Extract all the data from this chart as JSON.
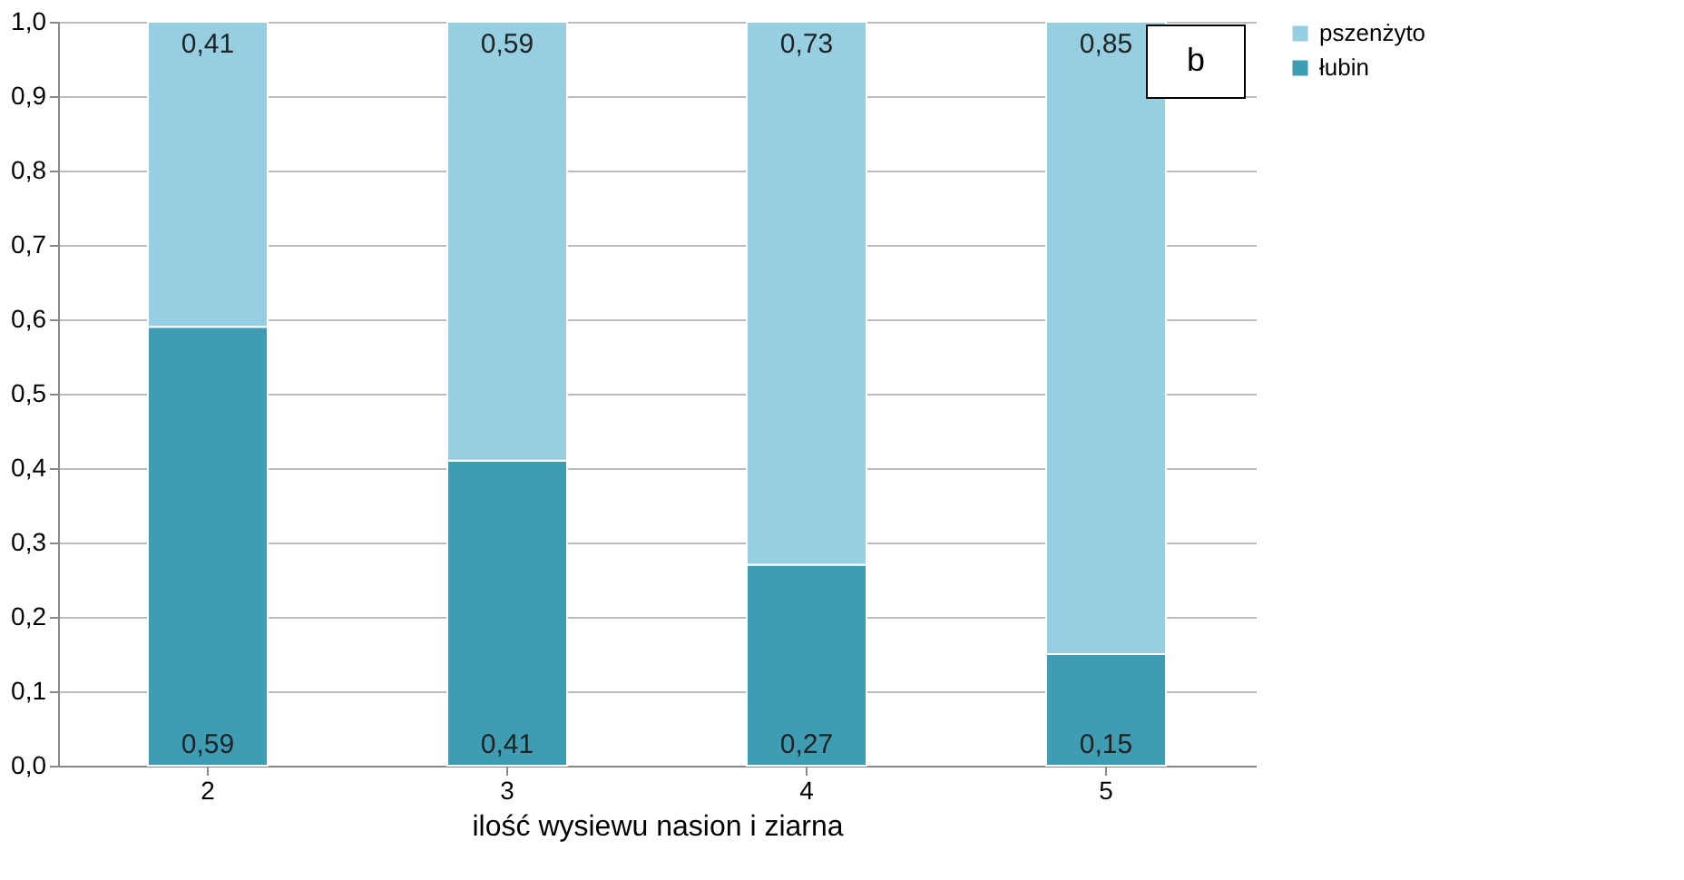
{
  "chart_data": {
    "type": "bar",
    "stacked": true,
    "xlabel": "ilość wysiewu nasion i ziarna",
    "categories": [
      "2",
      "3",
      "4",
      "5"
    ],
    "series": [
      {
        "name": "łubin",
        "color": "#3e9db3",
        "values": [
          0.59,
          0.41,
          0.27,
          0.15
        ],
        "value_labels": [
          "0,59",
          "0,41",
          "0,27",
          "0,15"
        ]
      },
      {
        "name": "pszenżyto",
        "color": "#96cfe2",
        "values": [
          0.41,
          0.59,
          0.73,
          0.85
        ],
        "value_labels": [
          "0,41",
          "0,59",
          "0,73",
          "0,85"
        ]
      }
    ],
    "ylim": [
      0,
      1.0
    ],
    "yticks": [
      {
        "value": 0,
        "label": "0,0"
      },
      {
        "value": 0.1,
        "label": "0,1"
      },
      {
        "value": 0.2,
        "label": "0,2"
      },
      {
        "value": 0.3,
        "label": "0,3"
      },
      {
        "value": 0.4,
        "label": "0,4"
      },
      {
        "value": 0.5,
        "label": "0,5"
      },
      {
        "value": 0.6,
        "label": "0,6"
      },
      {
        "value": 0.7,
        "label": "0,7"
      },
      {
        "value": 0.8,
        "label": "0,8"
      },
      {
        "value": 0.9,
        "label": "0,9"
      },
      {
        "value": 1.0,
        "label": "1,0"
      }
    ],
    "grid": "y",
    "legend": "right",
    "annotations": [
      "b"
    ]
  }
}
